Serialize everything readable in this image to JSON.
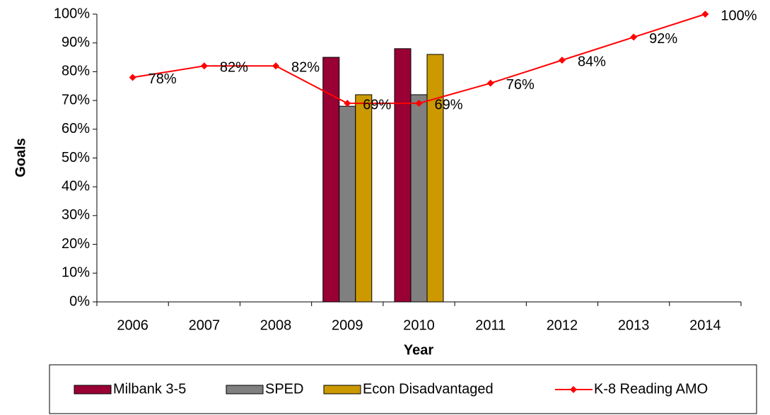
{
  "chart_data": {
    "type": "bar",
    "x_label": "Year",
    "y_label": "Goals",
    "categories": [
      "2006",
      "2007",
      "2008",
      "2009",
      "2010",
      "2011",
      "2012",
      "2013",
      "2014"
    ],
    "series": [
      {
        "name": "Milbank 3-5",
        "type": "bar",
        "color": "#990033",
        "values": [
          null,
          null,
          null,
          85,
          88,
          null,
          null,
          null,
          null
        ]
      },
      {
        "name": "SPED",
        "type": "bar",
        "color": "#808080",
        "values": [
          null,
          null,
          null,
          68,
          72,
          null,
          null,
          null,
          null
        ]
      },
      {
        "name": "Econ Disadvantaged",
        "type": "bar",
        "color": "#CC9900",
        "values": [
          null,
          null,
          null,
          72,
          86,
          null,
          null,
          null,
          null
        ]
      },
      {
        "name": "K-8 Reading AMO",
        "type": "line",
        "color": "#FF0000",
        "values": [
          78,
          82,
          82,
          69,
          69,
          76,
          84,
          92,
          100
        ],
        "value_labels": [
          "78%",
          "82%",
          "82%",
          "69%",
          "69%",
          "76%",
          "84%",
          "92%",
          "100%"
        ]
      }
    ],
    "ylim": [
      0,
      100
    ],
    "yticks": [
      {
        "value": 0,
        "label": "0%"
      },
      {
        "value": 10,
        "label": "10%"
      },
      {
        "value": 20,
        "label": "20%"
      },
      {
        "value": 30,
        "label": "30%"
      },
      {
        "value": 40,
        "label": "40%"
      },
      {
        "value": 50,
        "label": "50%"
      },
      {
        "value": 60,
        "label": "60%"
      },
      {
        "value": 70,
        "label": "70%"
      },
      {
        "value": 80,
        "label": "80%"
      },
      {
        "value": 90,
        "label": "90%"
      },
      {
        "value": 100,
        "label": "100%"
      }
    ],
    "grid": false,
    "legend": "bottom"
  }
}
